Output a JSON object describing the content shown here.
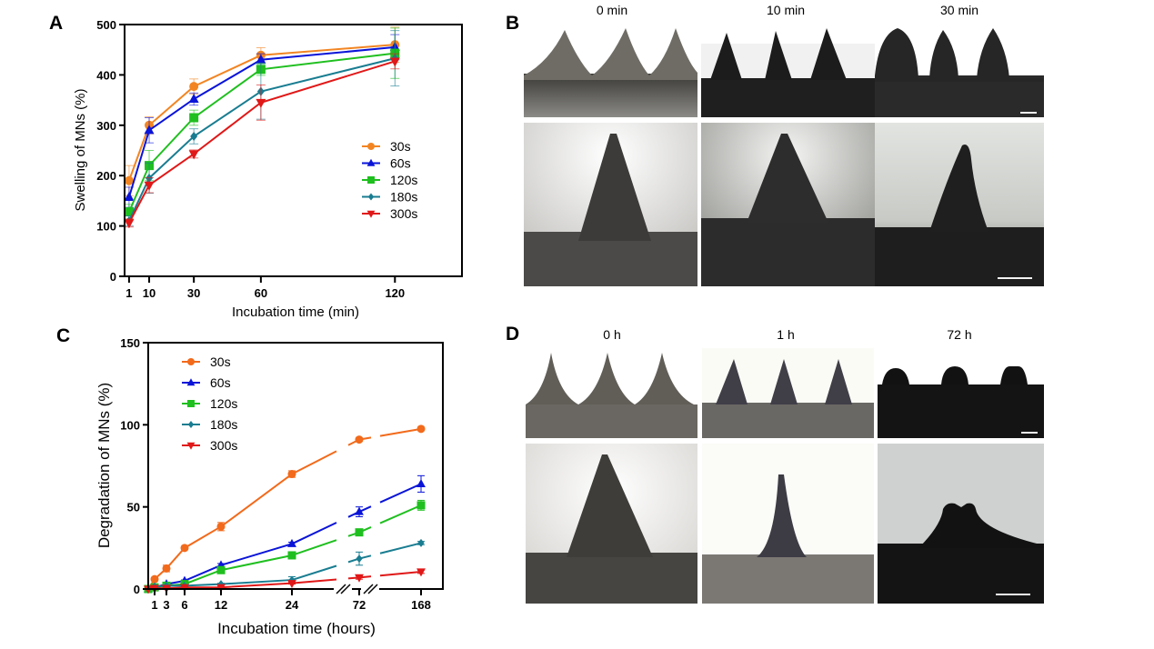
{
  "panels": {
    "A": {
      "letter": "A"
    },
    "B": {
      "letter": "B",
      "column_labels": [
        "0 min",
        "10 min",
        "30 min"
      ]
    },
    "C": {
      "letter": "C"
    },
    "D": {
      "letter": "D",
      "column_labels": [
        "0 h",
        "1 h",
        "72 h"
      ]
    }
  },
  "photos": {
    "B": [
      {
        "name": "b-0min-array",
        "kind": "array",
        "tone": "light",
        "needle_shape": "sharp"
      },
      {
        "name": "b-10min-array",
        "kind": "array",
        "tone": "dark",
        "needle_shape": "sharp"
      },
      {
        "name": "b-30min-array",
        "kind": "array",
        "tone": "dark",
        "needle_shape": "rounded",
        "scalebar": true
      },
      {
        "name": "b-0min-single",
        "kind": "single",
        "tone": "light",
        "needle_shape": "sharp"
      },
      {
        "name": "b-10min-single",
        "kind": "single",
        "tone": "mid",
        "needle_shape": "sharp"
      },
      {
        "name": "b-30min-single",
        "kind": "single",
        "tone": "dark",
        "needle_shape": "curved",
        "scalebar": true
      }
    ],
    "D": [
      {
        "name": "d-0h-array",
        "kind": "array",
        "tone": "light",
        "needle_shape": "sharp"
      },
      {
        "name": "d-1h-array",
        "kind": "array",
        "tone": "white",
        "needle_shape": "triangle"
      },
      {
        "name": "d-72h-array",
        "kind": "array",
        "tone": "black",
        "needle_shape": "stub",
        "scalebar": true
      },
      {
        "name": "d-0h-single",
        "kind": "single",
        "tone": "light",
        "needle_shape": "sharp"
      },
      {
        "name": "d-1h-single",
        "kind": "single",
        "tone": "white",
        "needle_shape": "sharp"
      },
      {
        "name": "d-72h-single",
        "kind": "single",
        "tone": "grey",
        "needle_shape": "stub",
        "scalebar": true
      }
    ]
  },
  "chart_data": [
    {
      "id": "A",
      "type": "line",
      "title": "",
      "xlabel": "Incubation time (min)",
      "ylabel": "Swelling of MNs (%)",
      "x": [
        1,
        10,
        30,
        60,
        120
      ],
      "xticks": [
        "1",
        "10",
        "30",
        "60",
        "120"
      ],
      "yticks": [
        "0",
        "100",
        "200",
        "300",
        "400",
        "500"
      ],
      "xlim": [
        -1,
        150
      ],
      "ylim": [
        0,
        500
      ],
      "grid": false,
      "legend": "right-middle",
      "series": [
        {
          "name": "30s",
          "color": "#f28522",
          "marker": "circle",
          "values": [
            190,
            300,
            377,
            439,
            460
          ],
          "errors": [
            30,
            17,
            15,
            15,
            35
          ]
        },
        {
          "name": "60s",
          "color": "#0a14d8",
          "marker": "triangle-up",
          "values": [
            157,
            290,
            352,
            430,
            455
          ],
          "errors": [
            20,
            25,
            12,
            12,
            25
          ]
        },
        {
          "name": "120s",
          "color": "#1fbf1f",
          "marker": "square",
          "values": [
            128,
            220,
            315,
            411,
            443
          ],
          "errors": [
            15,
            30,
            15,
            12,
            50
          ]
        },
        {
          "name": "180s",
          "color": "#197d91",
          "marker": "diamond",
          "values": [
            110,
            195,
            278,
            367,
            433
          ],
          "errors": [
            10,
            30,
            15,
            55,
            55
          ]
        },
        {
          "name": "300s",
          "color": "#e01818",
          "marker": "triangle-down",
          "values": [
            106,
            181,
            243,
            345,
            427
          ],
          "errors": [
            8,
            15,
            8,
            35,
            15
          ]
        }
      ]
    },
    {
      "id": "C",
      "type": "line",
      "title": "",
      "xlabel": "Incubation time (hours)",
      "ylabel": "Degradation of MNs (%)",
      "x": [
        0,
        1,
        3,
        6,
        12,
        24,
        72,
        168
      ],
      "xticks": [
        "1",
        "3",
        "6",
        "12",
        "24",
        "72",
        "168"
      ],
      "yticks": [
        "0",
        "50",
        "100",
        "150"
      ],
      "ylim": [
        0,
        150
      ],
      "x_axis_break": "between 24 and 72, and between 72 and 168",
      "grid": false,
      "legend": "top-left",
      "series": [
        {
          "name": "30s",
          "color": "#f26a1b",
          "marker": "circle",
          "values": [
            0,
            6,
            12.5,
            25,
            38,
            70,
            91,
            97.5
          ],
          "errors": [
            0,
            1,
            2,
            1,
            2.5,
            2,
            1,
            1
          ]
        },
        {
          "name": "60s",
          "color": "#0a14d8",
          "marker": "triangle-up",
          "values": [
            0,
            1,
            3,
            5,
            14.5,
            27.5,
            47,
            64
          ],
          "errors": [
            0,
            0.5,
            0.5,
            0.5,
            1,
            1,
            3,
            5
          ]
        },
        {
          "name": "120s",
          "color": "#1fbf1f",
          "marker": "square",
          "values": [
            0,
            1,
            2,
            3,
            11.5,
            20.5,
            34.5,
            51
          ],
          "errors": [
            0,
            0.5,
            0.5,
            0.5,
            1,
            1,
            1.5,
            3
          ]
        },
        {
          "name": "180s",
          "color": "#197d91",
          "marker": "diamond",
          "values": [
            0,
            1.5,
            2,
            2,
            3,
            5.5,
            18.5,
            28
          ],
          "errors": [
            0,
            0.5,
            0.5,
            0.5,
            0.5,
            2,
            4,
            1
          ]
        },
        {
          "name": "300s",
          "color": "#e01818",
          "marker": "triangle-down",
          "values": [
            0,
            0.5,
            0.5,
            1,
            1,
            3.5,
            7,
            10.5
          ],
          "errors": [
            0,
            0.3,
            0.3,
            0.3,
            0.3,
            0.5,
            1,
            1
          ]
        }
      ]
    }
  ]
}
